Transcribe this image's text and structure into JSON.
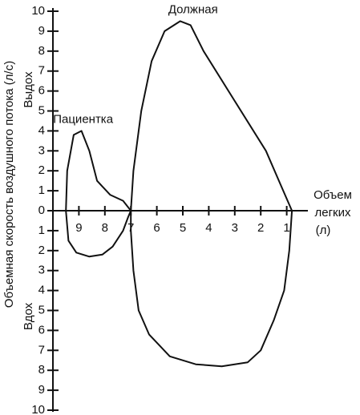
{
  "chart_data": {
    "type": "line",
    "y_label": "Объемная скорость воздушного потока (л/с)",
    "y_upper_label": "Выдох",
    "y_lower_label": "Вдох",
    "x_label": [
      "Объем",
      "легких",
      "(л)"
    ],
    "xlim": [
      10,
      0
    ],
    "xticks": [
      9,
      8,
      7,
      6,
      5,
      4,
      3,
      2,
      1
    ],
    "ylim": [
      -10,
      10
    ],
    "yticks": [
      10,
      9,
      8,
      7,
      6,
      5,
      4,
      3,
      2,
      1,
      0,
      {
        "value": -1,
        "label": "1"
      },
      {
        "value": -2,
        "label": "2"
      },
      {
        "value": -3,
        "label": "3"
      },
      {
        "value": -4,
        "label": "4"
      },
      {
        "value": -5,
        "label": "5"
      },
      {
        "value": -6,
        "label": "6"
      },
      {
        "value": -7,
        "label": "7"
      },
      {
        "value": -8,
        "label": "8"
      },
      {
        "value": -9,
        "label": "9"
      },
      {
        "value": -10,
        "label": "10"
      }
    ],
    "series": [
      {
        "name": "Должная",
        "color": "#111111",
        "x": [
          7,
          6.9,
          6.6,
          6.2,
          5.7,
          5.1,
          4.7,
          4.2,
          3,
          1.8,
          1.2,
          0.8,
          0.9,
          1.1,
          1.5,
          2,
          2.5,
          3.5,
          4.5,
          5.5,
          6.3,
          6.7,
          6.9,
          7,
          7
        ],
        "values": [
          0,
          2,
          5,
          7.5,
          9,
          9.5,
          9.3,
          8,
          5.5,
          3,
          1.2,
          0,
          -2,
          -4,
          -5.5,
          -7,
          -7.6,
          -7.8,
          -7.7,
          -7.3,
          -6.2,
          -5,
          -3,
          -1,
          0
        ]
      },
      {
        "name": "Пациентка",
        "color": "#111111",
        "x": [
          7,
          7.3,
          7.8,
          8.3,
          8.6,
          8.9,
          9.2,
          9.45,
          9.5,
          9.4,
          9.1,
          8.6,
          8.1,
          7.7,
          7.3,
          7.1,
          7
        ],
        "values": [
          0,
          0.5,
          0.8,
          1.5,
          3,
          4,
          3.8,
          2,
          0,
          -1.5,
          -2.1,
          -2.3,
          -2.2,
          -1.8,
          -1,
          -0.3,
          0
        ]
      }
    ]
  }
}
